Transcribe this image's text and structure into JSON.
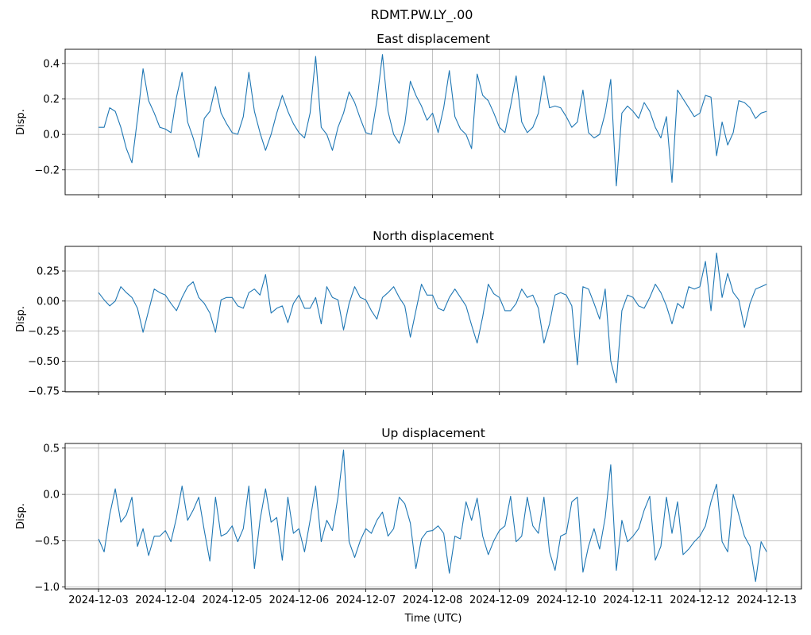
{
  "figure_title": "RDMT.PW.LY_.00",
  "colors": {
    "line": "#1f77b4",
    "grid": "#b0b0b0",
    "axes": "#000000"
  },
  "chart_data": [
    {
      "type": "line",
      "title": "East displacement",
      "xlabel": "",
      "ylabel": "Disp.",
      "ylim": [
        -0.34,
        0.48
      ],
      "yticks": [
        -0.2,
        0.0,
        0.2,
        0.4
      ],
      "ytick_labels": [
        "−0.2",
        "0.0",
        "0.2",
        "0.4"
      ],
      "grid": true,
      "values": [
        0.04,
        0.04,
        0.15,
        0.13,
        0.04,
        -0.08,
        -0.16,
        0.09,
        0.37,
        0.19,
        0.12,
        0.04,
        0.03,
        0.01,
        0.21,
        0.35,
        0.07,
        -0.02,
        -0.13,
        0.09,
        0.13,
        0.27,
        0.12,
        0.06,
        0.01,
        0.0,
        0.1,
        0.35,
        0.13,
        0.01,
        -0.09,
        0.0,
        0.12,
        0.22,
        0.13,
        0.06,
        0.01,
        -0.02,
        0.12,
        0.44,
        0.04,
        0.0,
        -0.09,
        0.04,
        0.12,
        0.24,
        0.18,
        0.09,
        0.01,
        0.0,
        0.19,
        0.45,
        0.13,
        0.0,
        -0.05,
        0.06,
        0.3,
        0.22,
        0.16,
        0.08,
        0.12,
        0.01,
        0.15,
        0.36,
        0.1,
        0.03,
        0.0,
        -0.08,
        0.34,
        0.22,
        0.19,
        0.12,
        0.04,
        0.01,
        0.16,
        0.33,
        0.07,
        0.01,
        0.04,
        0.12,
        0.33,
        0.15,
        0.16,
        0.15,
        0.1,
        0.04,
        0.07,
        0.25,
        0.01,
        -0.02,
        0.0,
        0.12,
        0.31,
        -0.29,
        0.12,
        0.16,
        0.13,
        0.09,
        0.18,
        0.13,
        0.04,
        -0.02,
        0.1,
        -0.27,
        0.25,
        0.2,
        0.15,
        0.1,
        0.12,
        0.22,
        0.21,
        -0.12,
        0.07,
        -0.06,
        0.01,
        0.19,
        0.18,
        0.15,
        0.09,
        0.12,
        0.13
      ]
    },
    {
      "type": "line",
      "title": "North displacement",
      "xlabel": "",
      "ylabel": "Disp.",
      "ylim": [
        -0.755,
        0.455
      ],
      "yticks": [
        -0.75,
        -0.5,
        -0.25,
        0.0,
        0.25
      ],
      "ytick_labels": [
        "−0.75",
        "−0.50",
        "−0.25",
        "0.00",
        "0.25"
      ],
      "grid": true,
      "values": [
        0.07,
        0.01,
        -0.04,
        0.0,
        0.12,
        0.07,
        0.03,
        -0.06,
        -0.26,
        -0.08,
        0.1,
        0.07,
        0.05,
        -0.02,
        -0.08,
        0.03,
        0.12,
        0.16,
        0.03,
        -0.02,
        -0.1,
        -0.26,
        0.01,
        0.03,
        0.03,
        -0.04,
        -0.06,
        0.07,
        0.1,
        0.05,
        0.22,
        -0.1,
        -0.06,
        -0.04,
        -0.18,
        -0.02,
        0.05,
        -0.06,
        -0.06,
        0.03,
        -0.19,
        0.12,
        0.03,
        0.01,
        -0.24,
        -0.02,
        0.12,
        0.03,
        0.01,
        -0.08,
        -0.15,
        0.03,
        0.07,
        0.12,
        0.03,
        -0.04,
        -0.3,
        -0.08,
        0.14,
        0.05,
        0.05,
        -0.06,
        -0.08,
        0.03,
        0.1,
        0.03,
        -0.04,
        -0.2,
        -0.35,
        -0.13,
        0.14,
        0.06,
        0.03,
        -0.08,
        -0.08,
        -0.02,
        0.1,
        0.03,
        0.05,
        -0.06,
        -0.35,
        -0.19,
        0.05,
        0.07,
        0.05,
        -0.04,
        -0.53,
        0.12,
        0.1,
        -0.02,
        -0.15,
        0.1,
        -0.5,
        -0.68,
        -0.08,
        0.05,
        0.03,
        -0.04,
        -0.06,
        0.03,
        0.14,
        0.07,
        -0.04,
        -0.19,
        -0.02,
        -0.06,
        0.12,
        0.1,
        0.12,
        0.33,
        -0.08,
        0.4,
        0.03,
        0.23,
        0.07,
        0.01,
        -0.22,
        -0.02,
        0.1,
        0.12,
        0.14
      ]
    },
    {
      "type": "line",
      "title": "Up displacement",
      "xlabel": "Time (UTC)",
      "ylabel": "Disp.",
      "ylim": [
        -1.02,
        0.55
      ],
      "yticks": [
        -1.0,
        -0.5,
        0.0,
        0.5
      ],
      "ytick_labels": [
        "−1.0",
        "−0.5",
        "0.0",
        "0.5"
      ],
      "grid": true,
      "values": [
        -0.48,
        -0.62,
        -0.22,
        0.06,
        -0.3,
        -0.22,
        -0.03,
        -0.56,
        -0.37,
        -0.66,
        -0.45,
        -0.45,
        -0.39,
        -0.51,
        -0.25,
        0.09,
        -0.28,
        -0.17,
        -0.03,
        -0.39,
        -0.72,
        -0.03,
        -0.45,
        -0.42,
        -0.34,
        -0.51,
        -0.37,
        0.09,
        -0.8,
        -0.28,
        0.06,
        -0.3,
        -0.25,
        -0.71,
        -0.03,
        -0.42,
        -0.37,
        -0.62,
        -0.28,
        0.09,
        -0.51,
        -0.28,
        -0.39,
        -0.03,
        0.48,
        -0.51,
        -0.68,
        -0.5,
        -0.37,
        -0.42,
        -0.28,
        -0.19,
        -0.45,
        -0.37,
        -0.03,
        -0.1,
        -0.31,
        -0.8,
        -0.48,
        -0.4,
        -0.39,
        -0.34,
        -0.42,
        -0.85,
        -0.45,
        -0.48,
        -0.08,
        -0.28,
        -0.04,
        -0.45,
        -0.65,
        -0.5,
        -0.39,
        -0.34,
        -0.02,
        -0.51,
        -0.45,
        -0.03,
        -0.34,
        -0.42,
        -0.03,
        -0.62,
        -0.82,
        -0.45,
        -0.42,
        -0.08,
        -0.03,
        -0.84,
        -0.56,
        -0.37,
        -0.59,
        -0.25,
        0.32,
        -0.82,
        -0.28,
        -0.51,
        -0.45,
        -0.37,
        -0.17,
        -0.02,
        -0.71,
        -0.56,
        -0.03,
        -0.42,
        -0.08,
        -0.65,
        -0.59,
        -0.51,
        -0.45,
        -0.34,
        -0.08,
        0.11,
        -0.51,
        -0.62,
        0.0,
        -0.22,
        -0.45,
        -0.56,
        -0.94,
        -0.51,
        -0.62
      ]
    }
  ],
  "x_axis": {
    "start": "2024-12-03T00:00",
    "end": "2024-12-13T00:00",
    "sample_interval_hours": 2,
    "xlim": [
      "2024-12-02T12:00",
      "2024-12-13T12:30"
    ],
    "tick_labels": [
      "2024-12-03",
      "2024-12-04",
      "2024-12-05",
      "2024-12-06",
      "2024-12-07",
      "2024-12-08",
      "2024-12-09",
      "2024-12-10",
      "2024-12-11",
      "2024-12-12",
      "2024-12-13"
    ],
    "shared": true
  }
}
